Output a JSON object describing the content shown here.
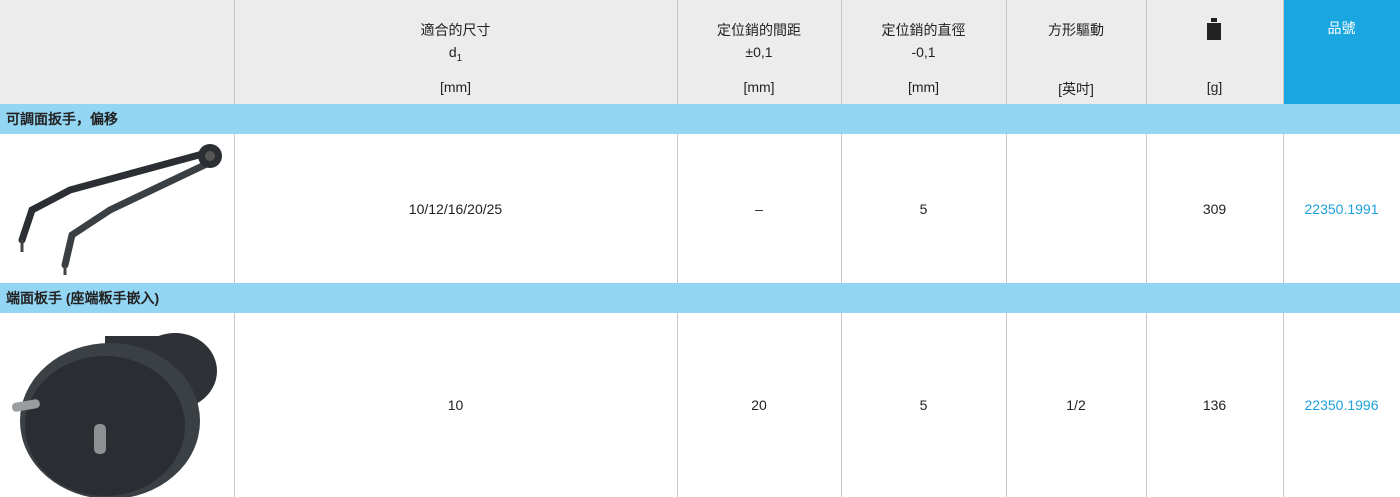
{
  "header": {
    "columns": [
      {
        "title": "適合的尺寸",
        "symbol": "d",
        "symbol_sub": "1",
        "unit": "[mm]"
      },
      {
        "title": "定位銷的間距",
        "tolerance": "±0,1",
        "unit": "[mm]"
      },
      {
        "title": "定位銷的直徑",
        "tolerance": "-0,1",
        "unit": "[mm]"
      },
      {
        "title": "方形驅動",
        "unit": "[英吋]"
      },
      {
        "unit": "[g]"
      }
    ],
    "part_number": "品號"
  },
  "sections": [
    {
      "title": "可調面扳手，偏移",
      "rows": [
        {
          "size": "10/12/16/20/25",
          "spacing": "–",
          "diameter": "5",
          "weight": "309",
          "part_number": "22350.1991"
        }
      ]
    },
    {
      "title": "端面板手 (座端粄手嵌入)",
      "rows": [
        {
          "size": "10",
          "spacing": "20",
          "diameter": "5",
          "drive": "1/2",
          "weight": "136",
          "part_number": "22350.1996"
        }
      ]
    }
  ]
}
